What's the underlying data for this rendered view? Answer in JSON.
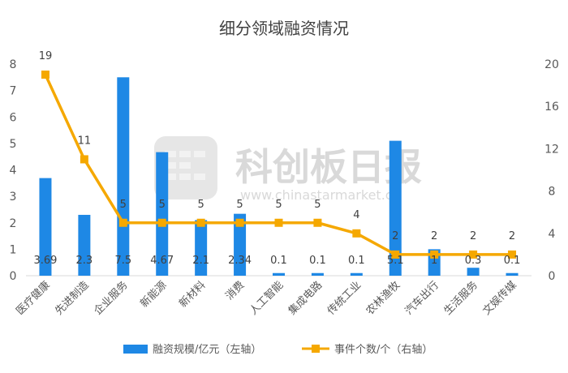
{
  "chart_data": {
    "type": "bar+line",
    "title": "细分领域融资情况",
    "categories": [
      "医疗健康",
      "先进制造",
      "企业服务",
      "新能源",
      "新材料",
      "消费",
      "人工智能",
      "集成电路",
      "传统工业",
      "农林渔牧",
      "汽车出行",
      "生活服务",
      "文娱传媒"
    ],
    "series": [
      {
        "name": "融资规模/亿元（左轴）",
        "type": "bar",
        "axis": "left",
        "values": [
          3.69,
          2.3,
          7.5,
          4.67,
          2.1,
          2.34,
          0.1,
          0.1,
          0.1,
          5.1,
          1,
          0.3,
          0.1
        ],
        "labels": [
          "3.69",
          "2.3",
          "7.5",
          "4.67",
          "2.1",
          "2.34",
          "0.1",
          "0.1",
          "0.1",
          "5.1",
          "1",
          "0.3",
          "0.1"
        ],
        "color": "#1e88e5"
      },
      {
        "name": "事件个数/个（右轴）",
        "type": "line",
        "axis": "right",
        "values": [
          19,
          11,
          5,
          5,
          5,
          5,
          5,
          5,
          4,
          2,
          2,
          2,
          2
        ],
        "labels": [
          "19",
          "11",
          "5",
          "5",
          "5",
          "5",
          "5",
          "5",
          "4",
          "2",
          "2",
          "2",
          "2"
        ],
        "color": "#f5a800"
      }
    ],
    "y_left": {
      "min": 0,
      "max": 8,
      "ticks": [
        "0",
        "1",
        "2",
        "3",
        "4",
        "5",
        "6",
        "7",
        "8"
      ]
    },
    "y_right": {
      "min": 0,
      "max": 20,
      "ticks": [
        "0",
        "4",
        "8",
        "12",
        "16",
        "20"
      ]
    },
    "grid": false,
    "legend": "bottom"
  },
  "watermark": {
    "text": "科创板日报",
    "url": "www.chinastarmarket.cn"
  }
}
